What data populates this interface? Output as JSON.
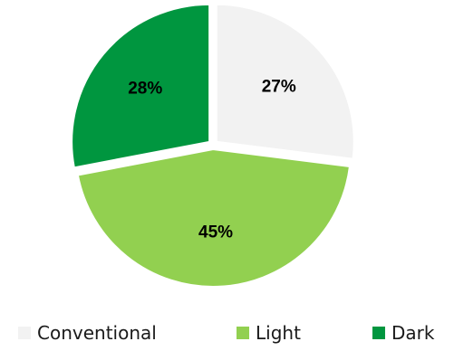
{
  "chart_data": {
    "type": "pie",
    "title": "",
    "slices": [
      {
        "label": "Conventional",
        "value": 27,
        "value_label": "27%",
        "color": "#f2f2f2"
      },
      {
        "label": "Light",
        "value": 45,
        "value_label": "45%",
        "color": "#92d050"
      },
      {
        "label": "Dark",
        "value": 28,
        "value_label": "28%",
        "color": "#00963f"
      }
    ],
    "start_angle": "12 o'clock",
    "direction": "clockwise",
    "exploded": true,
    "legend_position": "bottom"
  }
}
